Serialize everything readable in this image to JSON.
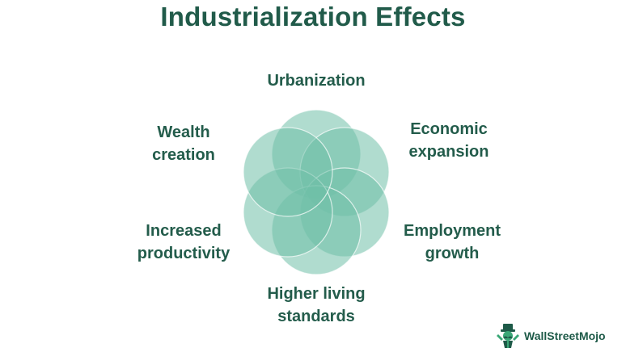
{
  "title": "Industrialization Effects",
  "effects": [
    {
      "id": "urbanization",
      "lines": [
        "Urbanization"
      ]
    },
    {
      "id": "economic",
      "lines": [
        "Economic",
        "expansion"
      ]
    },
    {
      "id": "employment",
      "lines": [
        "Employment",
        "growth"
      ]
    },
    {
      "id": "living",
      "lines": [
        "Higher living",
        "standards"
      ]
    },
    {
      "id": "productivity",
      "lines": [
        "Increased",
        "productivity"
      ]
    },
    {
      "id": "wealth",
      "lines": [
        "Wealth",
        "creation"
      ]
    }
  ],
  "brand": {
    "name": "WallStreetMojo",
    "icon": "mascot-icon"
  },
  "colors": {
    "title": "#215b4a",
    "label": "#235c4b",
    "petal_fill": "#6fbfa8",
    "petal_stroke": "#ffffff"
  }
}
